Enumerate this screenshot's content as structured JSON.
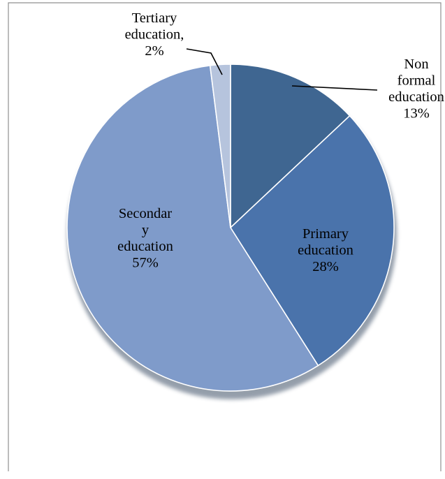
{
  "chart_data": {
    "type": "pie",
    "title": "",
    "unit": "%",
    "slices": [
      {
        "name": "Non formal education",
        "value": 13,
        "color": "#3f6691",
        "label_lines": [
          "Non",
          "formal",
          "education",
          "13%"
        ]
      },
      {
        "name": "Primary education",
        "value": 28,
        "color": "#4a73ab",
        "label_lines": [
          "Primary",
          "education",
          "28%"
        ]
      },
      {
        "name": "Secondary education",
        "value": 57,
        "color": "#7f9bca",
        "label_lines": [
          "Secondar",
          "y",
          "education",
          "57%"
        ]
      },
      {
        "name": "Tertiary education",
        "value": 2,
        "color": "#b6c4dd",
        "label_lines": [
          "Tertiary",
          "education,",
          "2%"
        ]
      }
    ],
    "legend": "none",
    "grid": false
  }
}
